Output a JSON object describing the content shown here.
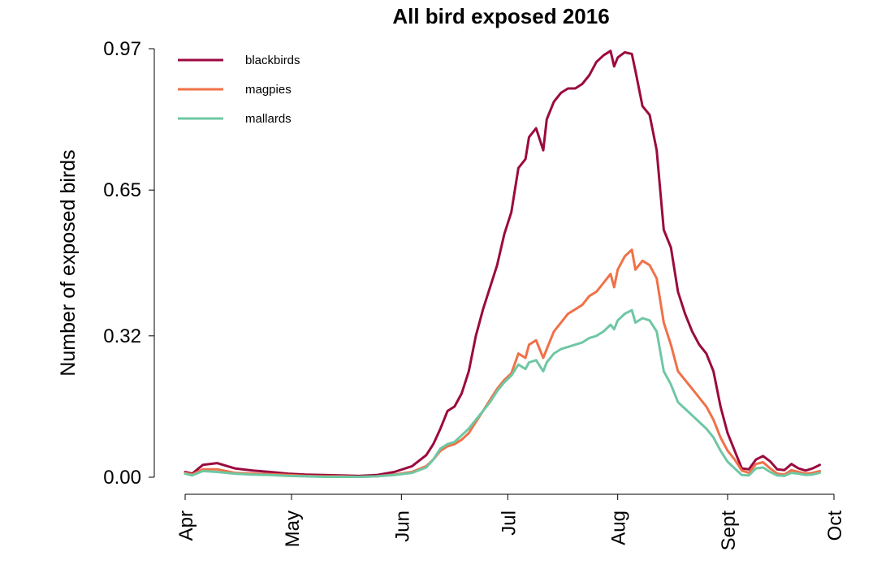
{
  "chart_data": {
    "type": "line",
    "title": "All bird exposed 2016",
    "xlabel": "",
    "ylabel": "Number of exposed birds",
    "x_ticks": [
      {
        "date": "2016-04-01",
        "label": "Apr"
      },
      {
        "date": "2016-05-01",
        "label": "May"
      },
      {
        "date": "2016-06-01",
        "label": "Jun"
      },
      {
        "date": "2016-07-01",
        "label": "Jul"
      },
      {
        "date": "2016-08-01",
        "label": "Aug"
      },
      {
        "date": "2016-09-01",
        "label": "Sept"
      },
      {
        "date": "2016-10-01",
        "label": "Oct"
      }
    ],
    "y_ticks": [
      0.0,
      0.32,
      0.65,
      0.97
    ],
    "y_tick_labels": [
      "0.00",
      "0.32",
      "0.65",
      "0.97"
    ],
    "xlim": [
      "2016-04-01",
      "2016-10-01"
    ],
    "ylim": [
      0,
      0.97
    ],
    "grid": false,
    "legend_position": "top-left",
    "x": [
      "2016-04-01",
      "2016-04-03",
      "2016-04-06",
      "2016-04-10",
      "2016-04-15",
      "2016-04-20",
      "2016-04-25",
      "2016-04-30",
      "2016-05-05",
      "2016-05-10",
      "2016-05-15",
      "2016-05-20",
      "2016-05-25",
      "2016-05-30",
      "2016-06-04",
      "2016-06-08",
      "2016-06-10",
      "2016-06-12",
      "2016-06-14",
      "2016-06-16",
      "2016-06-18",
      "2016-06-20",
      "2016-06-22",
      "2016-06-24",
      "2016-06-26",
      "2016-06-28",
      "2016-06-30",
      "2016-07-02",
      "2016-07-04",
      "2016-07-06",
      "2016-07-07",
      "2016-07-09",
      "2016-07-11",
      "2016-07-12",
      "2016-07-14",
      "2016-07-16",
      "2016-07-18",
      "2016-07-20",
      "2016-07-22",
      "2016-07-24",
      "2016-07-26",
      "2016-07-28",
      "2016-07-30",
      "2016-07-31",
      "2016-08-01",
      "2016-08-03",
      "2016-08-05",
      "2016-08-06",
      "2016-08-08",
      "2016-08-10",
      "2016-08-12",
      "2016-08-14",
      "2016-08-16",
      "2016-08-18",
      "2016-08-20",
      "2016-08-22",
      "2016-08-24",
      "2016-08-26",
      "2016-08-28",
      "2016-08-30",
      "2016-09-01",
      "2016-09-03",
      "2016-09-05",
      "2016-09-07",
      "2016-09-09",
      "2016-09-11",
      "2016-09-13",
      "2016-09-15",
      "2016-09-17",
      "2016-09-19",
      "2016-09-21",
      "2016-09-23",
      "2016-09-25",
      "2016-09-27"
    ],
    "series": [
      {
        "name": "blackbirds",
        "color": "#9b0a3f",
        "values": [
          0.012,
          0.008,
          0.028,
          0.032,
          0.02,
          0.015,
          0.012,
          0.008,
          0.006,
          0.005,
          0.004,
          0.003,
          0.005,
          0.012,
          0.025,
          0.05,
          0.075,
          0.11,
          0.15,
          0.16,
          0.19,
          0.24,
          0.32,
          0.38,
          0.43,
          0.48,
          0.55,
          0.6,
          0.7,
          0.72,
          0.77,
          0.79,
          0.74,
          0.81,
          0.85,
          0.87,
          0.88,
          0.88,
          0.89,
          0.91,
          0.94,
          0.955,
          0.965,
          0.93,
          0.95,
          0.962,
          0.958,
          0.92,
          0.84,
          0.82,
          0.74,
          0.56,
          0.52,
          0.42,
          0.37,
          0.33,
          0.3,
          0.28,
          0.24,
          0.16,
          0.1,
          0.06,
          0.02,
          0.018,
          0.04,
          0.048,
          0.036,
          0.018,
          0.016,
          0.03,
          0.02,
          0.015,
          0.02,
          0.028
        ]
      },
      {
        "name": "magpies",
        "color": "#f07148",
        "values": [
          0.01,
          0.006,
          0.018,
          0.018,
          0.01,
          0.008,
          0.007,
          0.005,
          0.003,
          0.002,
          0.002,
          0.001,
          0.002,
          0.006,
          0.012,
          0.025,
          0.04,
          0.06,
          0.07,
          0.075,
          0.085,
          0.1,
          0.125,
          0.15,
          0.175,
          0.2,
          0.22,
          0.235,
          0.28,
          0.27,
          0.3,
          0.31,
          0.27,
          0.29,
          0.33,
          0.35,
          0.37,
          0.38,
          0.39,
          0.41,
          0.42,
          0.44,
          0.46,
          0.43,
          0.47,
          0.5,
          0.515,
          0.47,
          0.49,
          0.48,
          0.45,
          0.35,
          0.3,
          0.24,
          0.22,
          0.2,
          0.18,
          0.16,
          0.13,
          0.09,
          0.06,
          0.04,
          0.015,
          0.01,
          0.03,
          0.034,
          0.02,
          0.008,
          0.006,
          0.016,
          0.012,
          0.008,
          0.01,
          0.014
        ]
      },
      {
        "name": "mallards",
        "color": "#6fc7a4",
        "values": [
          0.008,
          0.004,
          0.014,
          0.012,
          0.008,
          0.006,
          0.005,
          0.003,
          0.002,
          0.001,
          0.001,
          0.001,
          0.002,
          0.005,
          0.01,
          0.022,
          0.04,
          0.065,
          0.075,
          0.08,
          0.095,
          0.11,
          0.13,
          0.15,
          0.17,
          0.195,
          0.215,
          0.23,
          0.255,
          0.245,
          0.26,
          0.265,
          0.24,
          0.26,
          0.28,
          0.29,
          0.295,
          0.3,
          0.305,
          0.315,
          0.32,
          0.33,
          0.345,
          0.335,
          0.355,
          0.37,
          0.378,
          0.35,
          0.36,
          0.355,
          0.33,
          0.24,
          0.21,
          0.17,
          0.155,
          0.14,
          0.125,
          0.11,
          0.09,
          0.06,
          0.035,
          0.02,
          0.005,
          0.004,
          0.02,
          0.022,
          0.012,
          0.004,
          0.003,
          0.01,
          0.008,
          0.005,
          0.006,
          0.01
        ]
      }
    ]
  }
}
